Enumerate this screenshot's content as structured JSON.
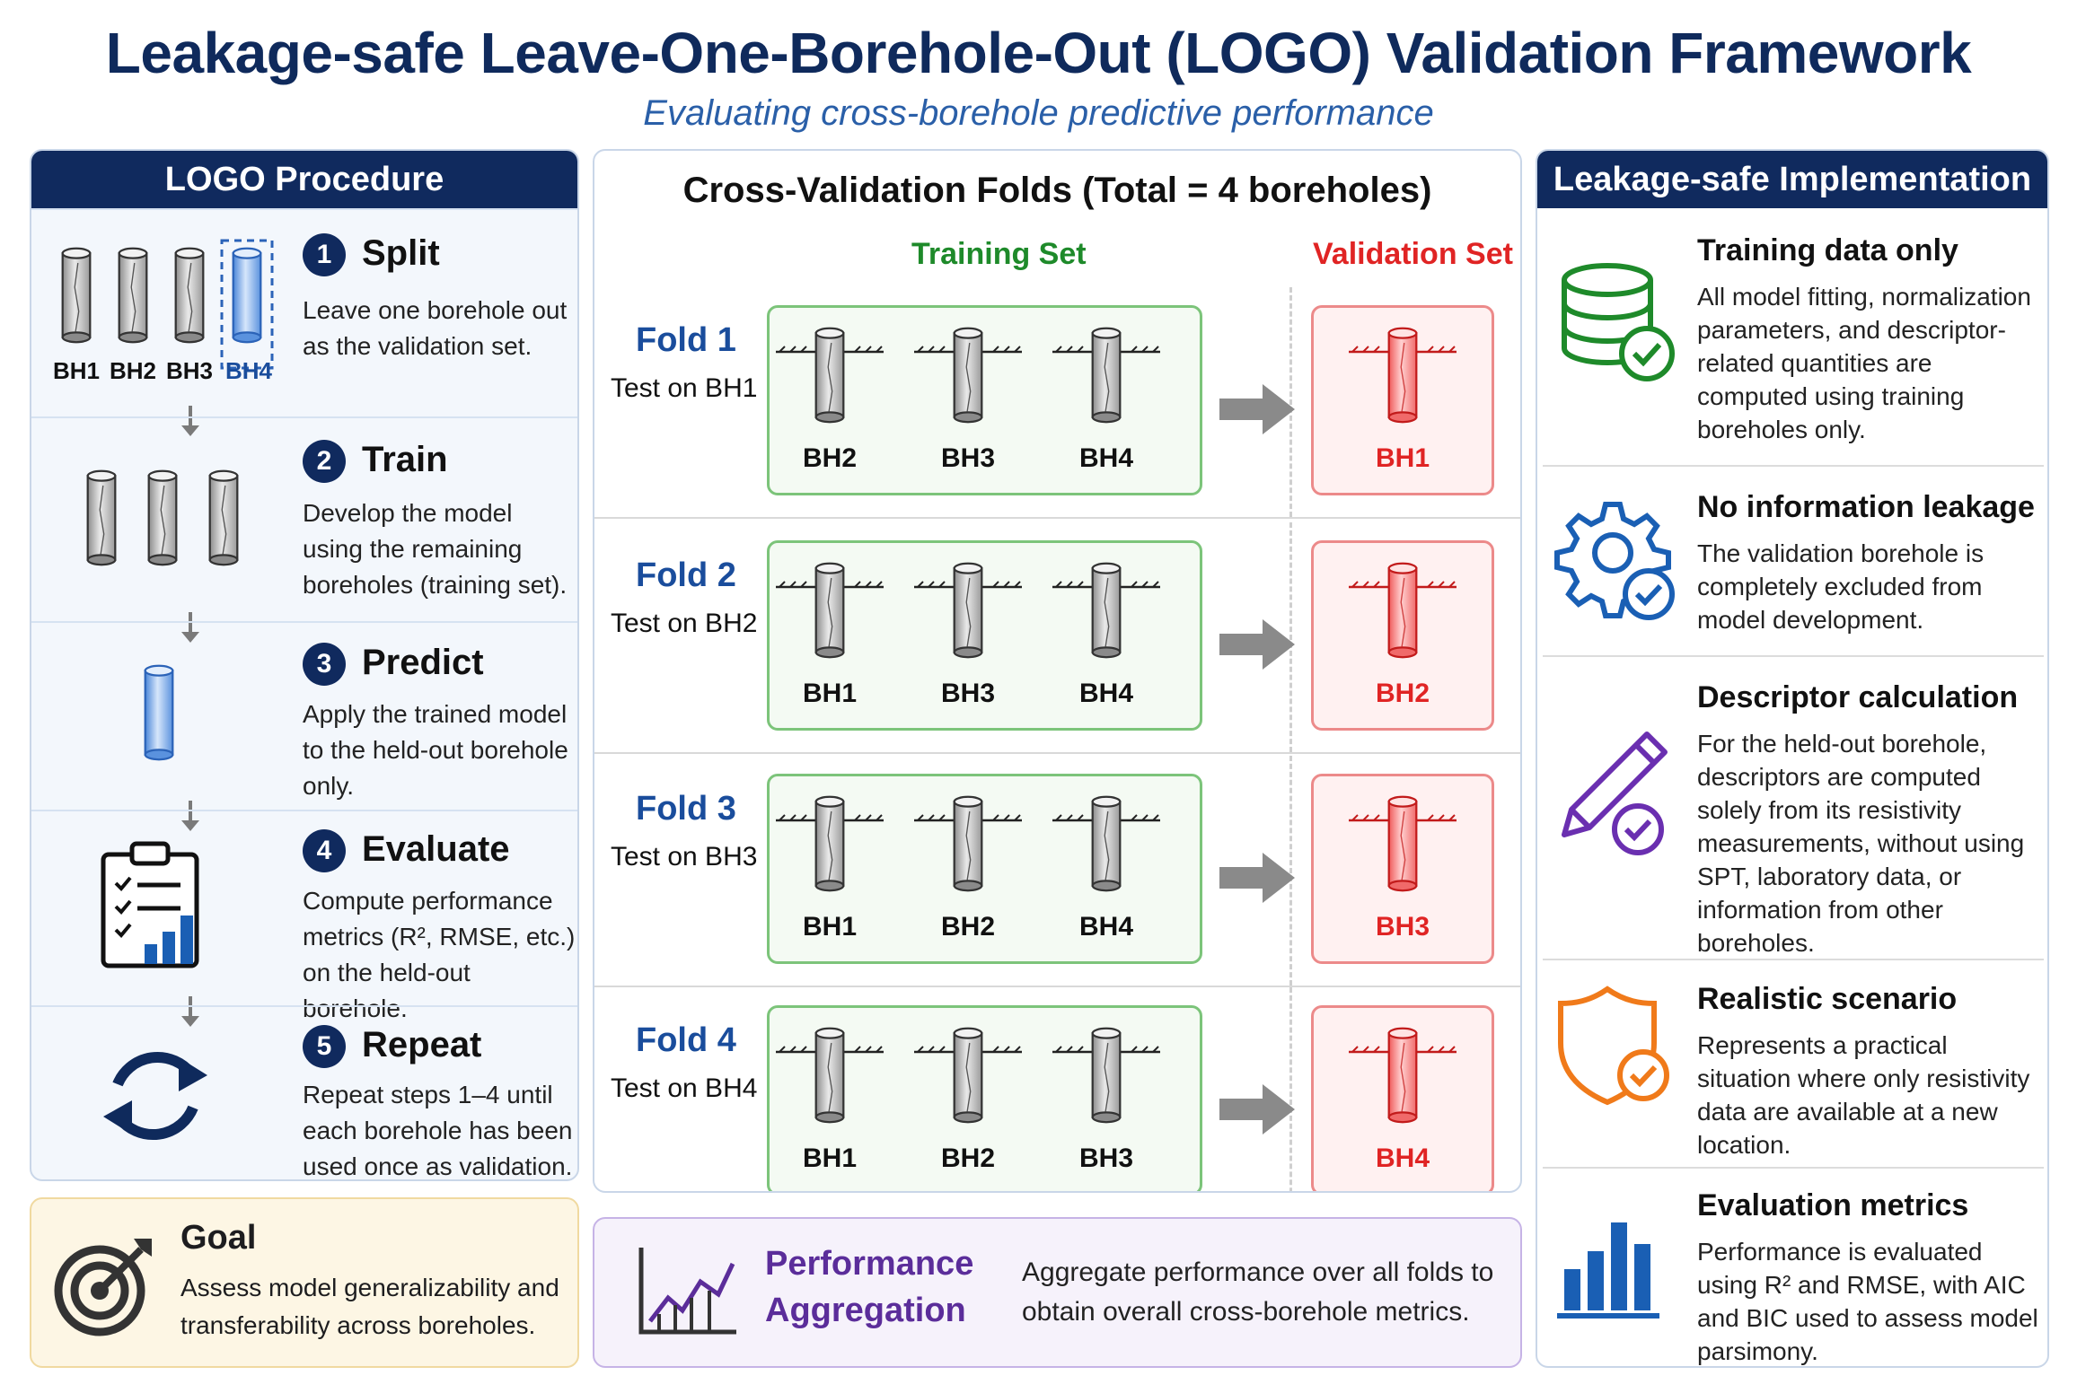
{
  "header": {
    "title": "Leakage-safe Leave-One-Borehole-Out (LOGO) Validation Framework",
    "subtitle": "Evaluating cross-borehole predictive performance"
  },
  "colors": {
    "navy": "#102a5e",
    "green": "#1e8a2a",
    "red": "#e02424",
    "purple": "#5b2d9a",
    "blue": "#1a4d9c"
  },
  "procedure": {
    "heading": "LOGO Procedure",
    "split_labels": [
      "BH1",
      "BH2",
      "BH3",
      "BH4"
    ],
    "steps": [
      {
        "num": "1",
        "title": "Split",
        "desc": "Leave one borehole out as the validation set.",
        "icon": "borehole-split-icon"
      },
      {
        "num": "2",
        "title": "Train",
        "desc": "Develop the model using the remaining boreholes (training set).",
        "icon": "training-boreholes-icon"
      },
      {
        "num": "3",
        "title": "Predict",
        "desc": "Apply the trained model to the held-out borehole only.",
        "icon": "held-out-borehole-icon"
      },
      {
        "num": "4",
        "title": "Evaluate",
        "desc": "Compute performance metrics (R², RMSE, etc.) on the held-out borehole.",
        "icon": "clipboard-chart-icon"
      },
      {
        "num": "5",
        "title": "Repeat",
        "desc": "Repeat steps 1–4 until each borehole has been used once as validation.",
        "icon": "repeat-cycle-icon"
      }
    ]
  },
  "goal": {
    "title": "Goal",
    "desc": "Assess model generalizability and transferability across boreholes.",
    "icon": "target-icon"
  },
  "folds": {
    "heading": "Cross-Validation Folds (Total = 4 boreholes)",
    "training_label": "Training Set",
    "validation_label": "Validation Set",
    "rows": [
      {
        "name": "Fold 1",
        "test": "Test on BH1",
        "train": [
          "BH2",
          "BH3",
          "BH4"
        ],
        "val": "BH1"
      },
      {
        "name": "Fold 2",
        "test": "Test on BH2",
        "train": [
          "BH1",
          "BH3",
          "BH4"
        ],
        "val": "BH2"
      },
      {
        "name": "Fold 3",
        "test": "Test on BH3",
        "train": [
          "BH1",
          "BH2",
          "BH4"
        ],
        "val": "BH3"
      },
      {
        "name": "Fold 4",
        "test": "Test on BH4",
        "train": [
          "BH1",
          "BH2",
          "BH3"
        ],
        "val": "BH4"
      }
    ]
  },
  "aggregation": {
    "title": "Performance Aggregation",
    "desc": "Aggregate performance over all folds to obtain overall cross-borehole metrics.",
    "icon": "line-chart-icon"
  },
  "implementation": {
    "heading": "Leakage-safe Implementation",
    "items": [
      {
        "title": "Training data only",
        "desc": "All model fitting, normalization parameters, and descriptor-related quantities are computed using training boreholes only.",
        "icon": "database-check-icon"
      },
      {
        "title": "No information leakage",
        "desc": "The validation borehole is completely excluded from model development.",
        "icon": "gear-check-icon"
      },
      {
        "title": "Descriptor calculation",
        "desc": "For the held-out borehole, descriptors are computed solely from its resistivity measurements, without using SPT, laboratory data, or information from other boreholes.",
        "icon": "pencil-check-icon"
      },
      {
        "title": "Realistic scenario",
        "desc": "Represents a practical situation where only resistivity data are available at a new location.",
        "icon": "shield-check-icon"
      },
      {
        "title": "Evaluation metrics",
        "desc": "Performance is evaluated using R² and RMSE, with AIC and BIC used to assess model parsimony.",
        "icon": "bar-chart-icon"
      }
    ]
  }
}
